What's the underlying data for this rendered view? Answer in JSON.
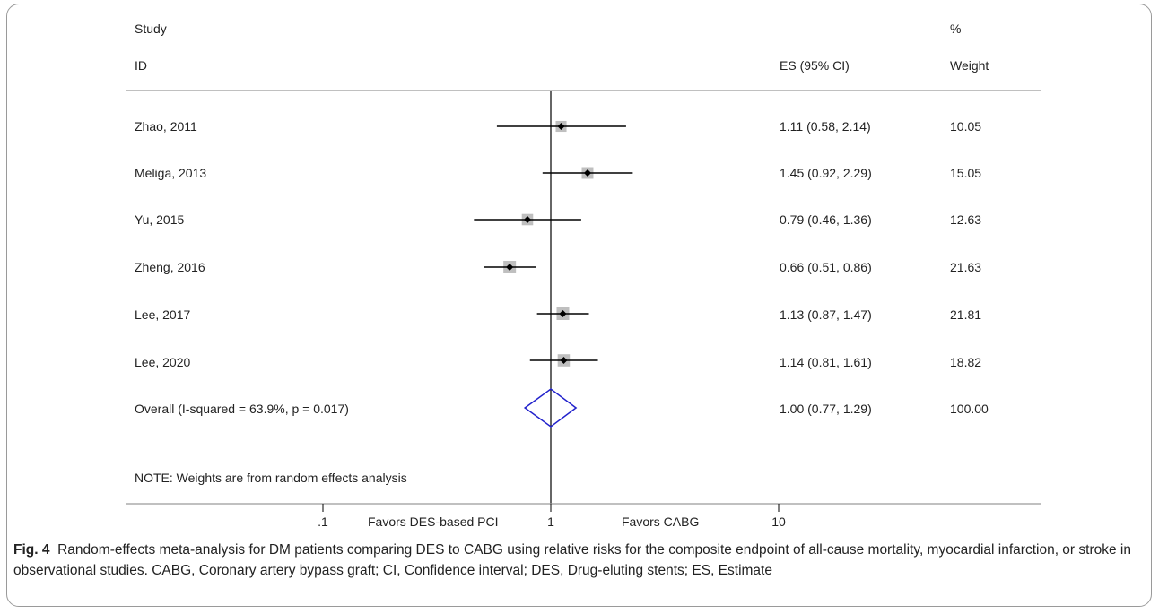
{
  "chart_data": {
    "type": "forest",
    "headers": {
      "study_top": "Study",
      "study_bottom": "ID",
      "es": "ES (95% CI)",
      "weight_top": "%",
      "weight_bottom": "Weight"
    },
    "studies": [
      {
        "label": "Zhao, 2011",
        "es": 1.11,
        "lo": 0.58,
        "hi": 2.14,
        "es_text": "1.11 (0.58, 2.14)",
        "weight": "10.05"
      },
      {
        "label": "Meliga, 2013",
        "es": 1.45,
        "lo": 0.92,
        "hi": 2.29,
        "es_text": "1.45 (0.92, 2.29)",
        "weight": "15.05"
      },
      {
        "label": "Yu, 2015",
        "es": 0.79,
        "lo": 0.46,
        "hi": 1.36,
        "es_text": "0.79 (0.46, 1.36)",
        "weight": "12.63"
      },
      {
        "label": "Zheng, 2016",
        "es": 0.66,
        "lo": 0.51,
        "hi": 0.86,
        "es_text": "0.66 (0.51, 0.86)",
        "weight": "21.63"
      },
      {
        "label": "Lee, 2017",
        "es": 1.13,
        "lo": 0.87,
        "hi": 1.47,
        "es_text": "1.13 (0.87, 1.47)",
        "weight": "21.81"
      },
      {
        "label": "Lee, 2020",
        "es": 1.14,
        "lo": 0.81,
        "hi": 1.61,
        "es_text": "1.14 (0.81, 1.61)",
        "weight": "18.82"
      }
    ],
    "overall": {
      "label": "Overall  (I-squared = 63.9%, p = 0.017)",
      "es": 1.0,
      "lo": 0.77,
      "hi": 1.29,
      "es_text": "1.00 (0.77, 1.29)",
      "weight": "100.00"
    },
    "note": "NOTE: Weights are from random effects analysis",
    "x_scale": "log",
    "x_ticks": [
      {
        "value": 0.1,
        "label": ".1"
      },
      {
        "value": 1,
        "label": "1"
      },
      {
        "value": 10,
        "label": "10"
      }
    ],
    "favors_left": "Favors DES-based PCI",
    "favors_right": "Favors CABG",
    "null_value": 1,
    "colors": {
      "text": "#222222",
      "ci": "#000000",
      "weight_box": "#bfbfbf",
      "diamond": "#2222cc",
      "rule": "#9a9a9a"
    }
  },
  "caption": {
    "label": "Fig. 4",
    "text": "Random-effects meta-analysis for DM patients comparing DES to CABG using relative risks for the composite endpoint of all-cause mortality, myocardial infarction, or stroke in observational studies. CABG, Coronary artery bypass graft; CI, Confidence interval; DES, Drug-eluting stents; ES, Estimate"
  }
}
